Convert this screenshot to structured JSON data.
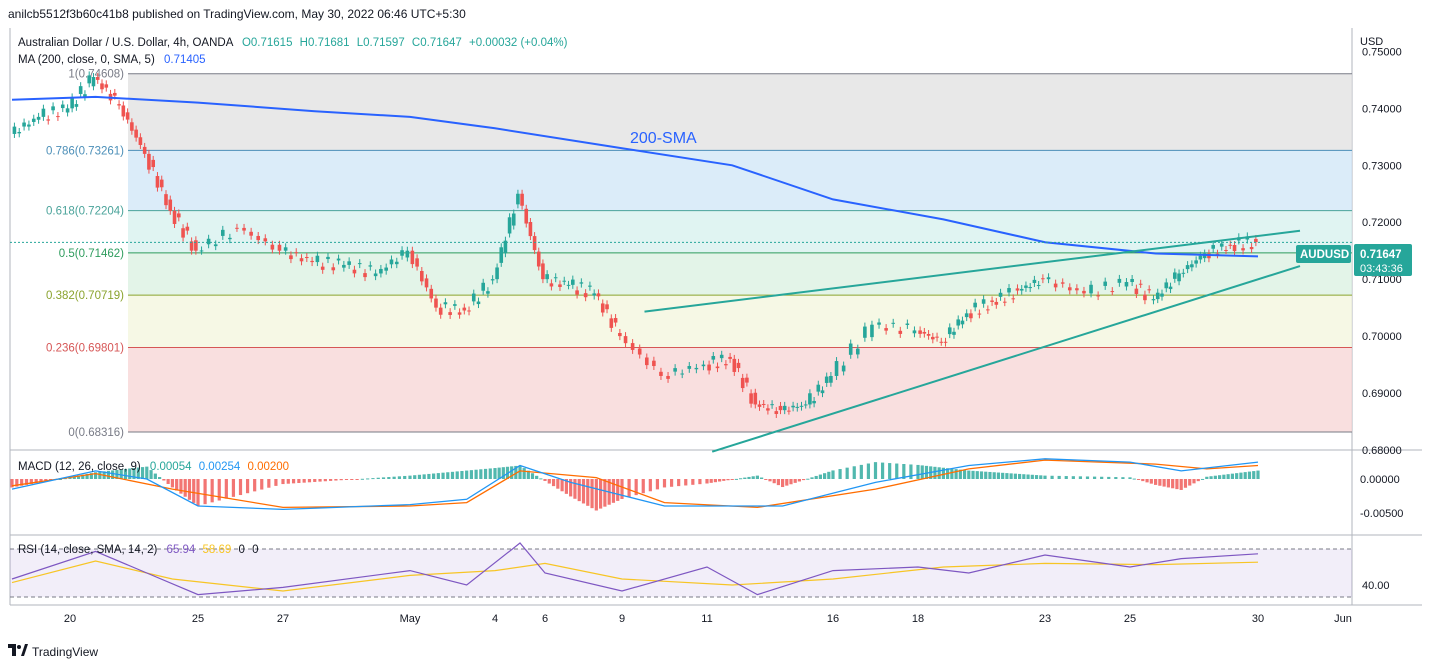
{
  "header": {
    "publisher": "anilcb5512f3b60c41b8 published on TradingView.com, May 30, 2022 06:46 UTC+5:30"
  },
  "legend": {
    "symbol": "Australian Dollar / U.S. Dollar, 4h, OANDA",
    "o": "O0.71615",
    "h": "H0.71681",
    "l": "L0.71597",
    "c": "C0.71647",
    "change": "+0.00032 (+0.04%)",
    "ma_label": "MA (200, close, 0, SMA, 5)",
    "ma_value": "0.71405"
  },
  "price_axis": {
    "currency": "USD",
    "ticks": [
      "0.75000",
      "0.74000",
      "0.73000",
      "0.72000",
      "0.71000",
      "0.70000",
      "0.69000",
      "0.68000"
    ]
  },
  "symbol_tag": {
    "name": "AUDUSD",
    "price": "0.71647",
    "countdown": "03:43:36"
  },
  "annotations": {
    "sma_text": "200-SMA"
  },
  "macd": {
    "label": "MACD (12, 26, close, 9)",
    "hist": "0.00054",
    "macd": "0.00254",
    "signal": "0.00200",
    "ticks": [
      "0.00000",
      "-0.00500"
    ]
  },
  "rsi": {
    "label": "RSI (14, close, SMA, 14, 2)",
    "rsi": "65.94",
    "sma": "58.69",
    "z1": "0",
    "z2": "0",
    "ticks": [
      "40.00"
    ]
  },
  "time_axis": {
    "labels": [
      "20",
      "25",
      "27",
      "May",
      "4",
      "6",
      "9",
      "11",
      "16",
      "18",
      "23",
      "25",
      "30",
      "Jun"
    ]
  },
  "footer": {
    "brand": "TradingView"
  },
  "colors": {
    "up": "#26a69a",
    "down": "#ef5350",
    "sma": "#2962ff",
    "trend": "#26a69a",
    "macd": "#2196f3",
    "signal": "#ff6d00",
    "rsi": "#7e57c2"
  },
  "chart_data": {
    "type": "candlestick",
    "title": "Australian Dollar / U.S. Dollar, 4h, OANDA",
    "y_range": [
      0.68,
      0.752
    ],
    "x_range": [
      "Apr 18",
      "Jun 1"
    ],
    "price_ticks": [
      0.75,
      0.74,
      0.73,
      0.72,
      0.71,
      0.7,
      0.69,
      0.68
    ],
    "fibonacci": [
      {
        "label": "1(0.74608)",
        "value": 0.74608
      },
      {
        "label": "0.786(0.73261)",
        "value": 0.73261
      },
      {
        "label": "0.618(0.72204)",
        "value": 0.72204
      },
      {
        "label": "0.5(0.71462)",
        "value": 0.71462
      },
      {
        "label": "0.382(0.70719)",
        "value": 0.70719
      },
      {
        "label": "0.236(0.69801)",
        "value": 0.69801
      },
      {
        "label": "0(0.68316)",
        "value": 0.68316
      }
    ],
    "close_path": [
      [
        "Apr 18",
        0.7355
      ],
      [
        "Apr 19",
        0.7385
      ],
      [
        "Apr 20",
        0.74
      ],
      [
        "Apr 21",
        0.7455
      ],
      [
        "Apr 22",
        0.7405
      ],
      [
        "Apr 23",
        0.732
      ],
      [
        "Apr 24",
        0.722
      ],
      [
        "Apr 25",
        0.715
      ],
      [
        "Apr 26",
        0.719
      ],
      [
        "Apr 27",
        0.715
      ],
      [
        "Apr 28",
        0.713
      ],
      [
        "Apr 29",
        0.7125
      ],
      [
        "Apr 30",
        0.711
      ],
      [
        "May 1",
        0.715
      ],
      [
        "May 2",
        0.705
      ],
      [
        "May 3",
        0.7045
      ],
      [
        "May 4",
        0.71
      ],
      [
        "May 5",
        0.725
      ],
      [
        "May 6",
        0.71
      ],
      [
        "May 7",
        0.709
      ],
      [
        "May 8",
        0.7075
      ],
      [
        "May 9",
        0.7
      ],
      [
        "May 10",
        0.693
      ],
      [
        "May 11",
        0.695
      ],
      [
        "May 12",
        0.696
      ],
      [
        "May 13",
        0.688
      ],
      [
        "May 14",
        0.687
      ],
      [
        "May 15",
        0.688
      ],
      [
        "May 16",
        0.693
      ],
      [
        "May 17",
        0.702
      ],
      [
        "May 18",
        0.701
      ],
      [
        "May 19",
        0.699
      ],
      [
        "May 20",
        0.704
      ],
      [
        "May 21",
        0.706
      ],
      [
        "May 22",
        0.708
      ],
      [
        "May 23",
        0.71
      ],
      [
        "May 24",
        0.7075
      ],
      [
        "May 25",
        0.7095
      ],
      [
        "May 26",
        0.7065
      ],
      [
        "May 27",
        0.711
      ],
      [
        "May 28",
        0.7145
      ],
      [
        "May 29",
        0.716
      ],
      [
        "May 30",
        0.7165
      ]
    ],
    "sma200": [
      [
        "Apr 18",
        0.7415
      ],
      [
        "Apr 21",
        0.742
      ],
      [
        "Apr 25",
        0.741
      ],
      [
        "Apr 28",
        0.7395
      ],
      [
        "May 1",
        0.7385
      ],
      [
        "May 4",
        0.7365
      ],
      [
        "May 9",
        0.733
      ],
      [
        "May 12",
        0.73
      ],
      [
        "May 16",
        0.724
      ],
      [
        "May 19",
        0.7205
      ],
      [
        "May 23",
        0.7165
      ],
      [
        "May 26",
        0.7145
      ],
      [
        "May 30",
        0.714
      ]
    ],
    "trendlines": [
      {
        "name": "upper",
        "from": [
          "May 10",
          0.7043
        ],
        "to": [
          "May 31",
          0.7185
        ]
      },
      {
        "name": "lower",
        "from": [
          "May 12",
          0.6797
        ],
        "to": [
          "May 31",
          0.7123
        ]
      }
    ],
    "last_price": 0.71647,
    "macd_series": {
      "ticks": [
        0.0,
        -0.005
      ],
      "range": [
        -0.008,
        0.004
      ],
      "macd": [
        [
          "Apr 18",
          -0.0015
        ],
        [
          "Apr 21",
          0.0012
        ],
        [
          "Apr 23",
          0.0
        ],
        [
          "Apr 25",
          -0.004
        ],
        [
          "Apr 27",
          -0.0045
        ],
        [
          "May 1",
          -0.0038
        ],
        [
          "May 3",
          -0.003
        ],
        [
          "May 5",
          0.002
        ],
        [
          "May 7",
          -0.0005
        ],
        [
          "May 10",
          -0.004
        ],
        [
          "May 12",
          -0.004
        ],
        [
          "May 14",
          -0.004
        ],
        [
          "May 17",
          -0.0005
        ],
        [
          "May 20",
          0.002
        ],
        [
          "May 23",
          0.003
        ],
        [
          "May 25",
          0.0025
        ],
        [
          "May 27",
          0.0012
        ],
        [
          "May 30",
          0.0025
        ]
      ],
      "signal": [
        [
          "Apr 18",
          -0.001
        ],
        [
          "Apr 21",
          0.0008
        ],
        [
          "Apr 24",
          -0.0015
        ],
        [
          "Apr 27",
          -0.0042
        ],
        [
          "May 1",
          -0.004
        ],
        [
          "May 3",
          -0.0035
        ],
        [
          "May 5",
          0.0012
        ],
        [
          "May 8",
          0.0002
        ],
        [
          "May 10",
          -0.0035
        ],
        [
          "May 13",
          -0.0042
        ],
        [
          "May 17",
          -0.0015
        ],
        [
          "May 20",
          0.0015
        ],
        [
          "May 23",
          0.0028
        ],
        [
          "May 26",
          0.0022
        ],
        [
          "May 28",
          0.0015
        ],
        [
          "May 30",
          0.002
        ]
      ]
    },
    "rsi_series": {
      "ticks": [
        40
      ],
      "range": [
        25,
        80
      ],
      "bands": [
        30,
        70
      ],
      "rsi": [
        [
          "Apr 18",
          45
        ],
        [
          "Apr 21",
          68
        ],
        [
          "Apr 23",
          50
        ],
        [
          "Apr 25",
          32
        ],
        [
          "Apr 27",
          38
        ],
        [
          "May 1",
          52
        ],
        [
          "May 3",
          40
        ],
        [
          "May 5",
          75
        ],
        [
          "May 6",
          50
        ],
        [
          "May 9",
          35
        ],
        [
          "May 11",
          55
        ],
        [
          "May 13",
          32
        ],
        [
          "May 16",
          52
        ],
        [
          "May 18",
          55
        ],
        [
          "May 20",
          50
        ],
        [
          "May 23",
          65
        ],
        [
          "May 25",
          55
        ],
        [
          "May 27",
          62
        ],
        [
          "May 30",
          66
        ]
      ],
      "sma": [
        [
          "Apr 18",
          42
        ],
        [
          "Apr 21",
          60
        ],
        [
          "Apr 24",
          45
        ],
        [
          "Apr 27",
          35
        ],
        [
          "May 1",
          48
        ],
        [
          "May 4",
          52
        ],
        [
          "May 6",
          58
        ],
        [
          "May 9",
          45
        ],
        [
          "May 12",
          40
        ],
        [
          "May 16",
          45
        ],
        [
          "May 19",
          55
        ],
        [
          "May 23",
          58
        ],
        [
          "May 26",
          57
        ],
        [
          "May 30",
          59
        ]
      ]
    }
  }
}
